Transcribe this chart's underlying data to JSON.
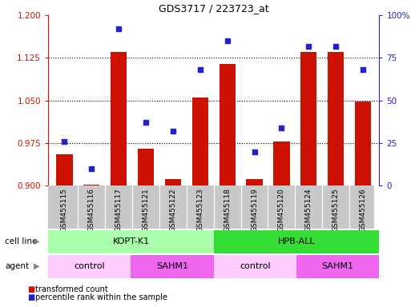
{
  "title": "GDS3717 / 223723_at",
  "samples": [
    "GSM455115",
    "GSM455116",
    "GSM455117",
    "GSM455121",
    "GSM455122",
    "GSM455123",
    "GSM455118",
    "GSM455119",
    "GSM455120",
    "GSM455124",
    "GSM455125",
    "GSM455126"
  ],
  "red_values": [
    0.955,
    0.902,
    1.135,
    0.965,
    0.912,
    1.055,
    1.115,
    0.912,
    0.978,
    1.135,
    1.135,
    1.048
  ],
  "blue_values": [
    26,
    10,
    92,
    37,
    32,
    68,
    85,
    20,
    34,
    82,
    82,
    68
  ],
  "ylim_left": [
    0.9,
    1.2
  ],
  "ylim_right": [
    0,
    100
  ],
  "yticks_left": [
    0.9,
    0.975,
    1.05,
    1.125,
    1.2
  ],
  "yticks_right": [
    0,
    25,
    50,
    75,
    100
  ],
  "cell_line_groups": [
    {
      "label": "KOPT-K1",
      "start": 0,
      "end": 6,
      "color": "#AAFFAA"
    },
    {
      "label": "HPB-ALL",
      "start": 6,
      "end": 12,
      "color": "#33DD33"
    }
  ],
  "agent_groups": [
    {
      "label": "control",
      "start": 0,
      "end": 3,
      "color": "#FFCCFF"
    },
    {
      "label": "SAHM1",
      "start": 3,
      "end": 6,
      "color": "#EE66EE"
    },
    {
      "label": "control",
      "start": 6,
      "end": 9,
      "color": "#FFCCFF"
    },
    {
      "label": "SAHM1",
      "start": 9,
      "end": 12,
      "color": "#EE66EE"
    }
  ],
  "bar_color": "#CC1100",
  "dot_color": "#2222CC",
  "bar_width": 0.6,
  "left_axis_color": "#CC1100",
  "right_axis_color": "#2222CC",
  "tick_bg": "#C8C8C8"
}
